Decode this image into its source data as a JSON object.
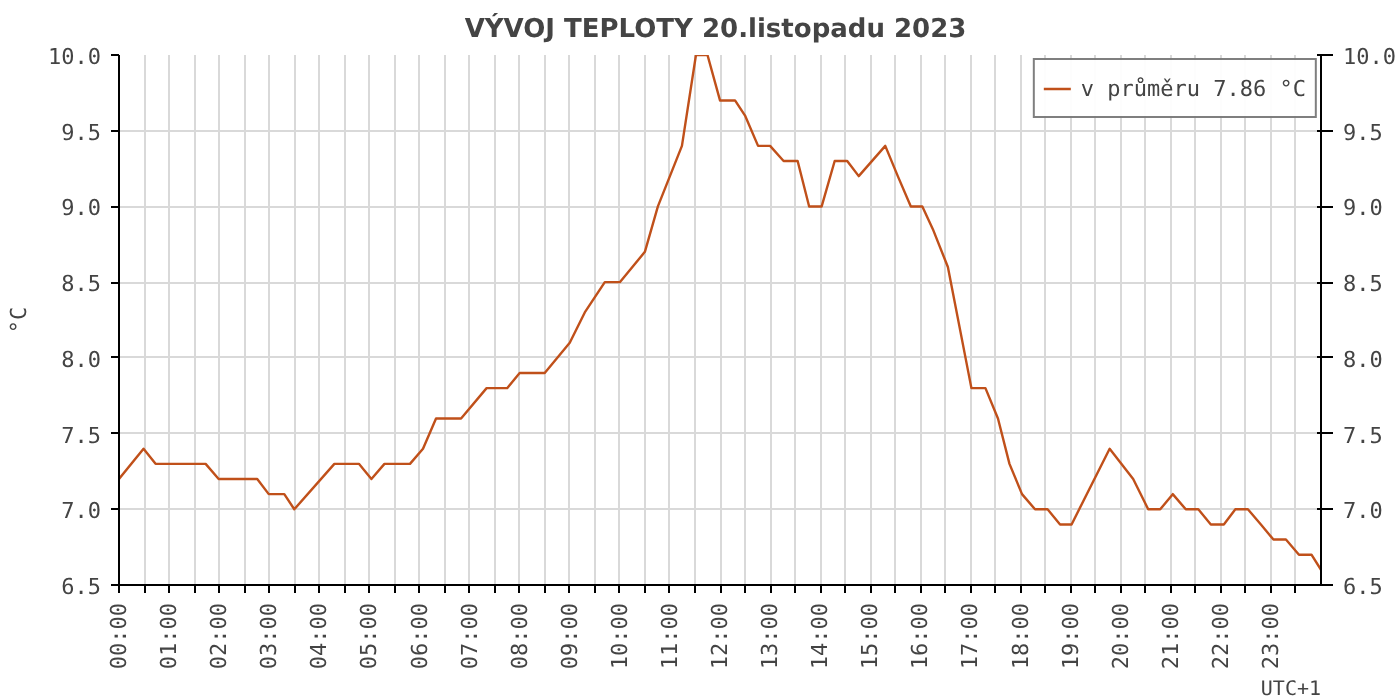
{
  "chart_data": {
    "type": "line",
    "title": "VÝVOJ TEPLOTY  20.listopadu 2023",
    "ylabel": "°C",
    "annotations": [
      "UTC+1"
    ],
    "x": [
      0,
      0.49,
      0.73,
      1.73,
      1.99,
      2.76,
      2.99,
      3.3,
      3.5,
      4.3,
      4.79,
      5.04,
      5.3,
      5.81,
      6.07,
      6.33,
      6.83,
      7.34,
      7.75,
      8.0,
      8.5,
      9.0,
      9.3,
      9.7,
      10.0,
      10.5,
      10.76,
      11.24,
      11.52,
      11.75,
      12.0,
      12.3,
      12.5,
      12.76,
      13.0,
      13.27,
      13.55,
      13.78,
      14.03,
      14.29,
      14.54,
      14.77,
      15.3,
      15.55,
      15.81,
      16.04,
      16.25,
      16.55,
      17.02,
      17.3,
      17.55,
      17.78,
      18.03,
      18.29,
      18.54,
      18.79,
      19.02,
      19.78,
      20.25,
      20.55,
      20.79,
      21.04,
      21.3,
      21.55,
      21.8,
      22.06,
      22.29,
      22.54,
      22.8,
      23.05,
      23.3,
      23.56,
      23.81,
      24.0
    ],
    "series": [
      {
        "name": "v průměru 7.86 °C",
        "color": "#c0501a",
        "values": [
          7.2,
          7.4,
          7.3,
          7.3,
          7.2,
          7.2,
          7.1,
          7.1,
          7.0,
          7.3,
          7.3,
          7.2,
          7.3,
          7.3,
          7.4,
          7.6,
          7.6,
          7.8,
          7.8,
          7.9,
          7.9,
          8.1,
          8.3,
          8.5,
          8.5,
          8.7,
          9.0,
          9.4,
          10.0,
          10.0,
          9.7,
          9.7,
          9.6,
          9.4,
          9.4,
          9.3,
          9.3,
          9.0,
          9.0,
          9.3,
          9.3,
          9.2,
          9.4,
          9.2,
          9.0,
          9.0,
          8.85,
          8.6,
          7.8,
          7.8,
          7.6,
          7.3,
          7.1,
          7.0,
          7.0,
          6.9,
          6.9,
          7.4,
          7.2,
          7.0,
          7.0,
          7.1,
          7.0,
          7.0,
          6.9,
          6.9,
          7.0,
          7.0,
          6.9,
          6.8,
          6.8,
          6.7,
          6.7,
          6.6
        ]
      }
    ],
    "xlim": [
      0,
      24
    ],
    "xticks": [
      {
        "value": 0,
        "label": "00:00"
      },
      {
        "value": 0.5,
        "label": null
      },
      {
        "value": 1,
        "label": "01:00"
      },
      {
        "value": 1.5,
        "label": null
      },
      {
        "value": 2,
        "label": "02:00"
      },
      {
        "value": 2.5,
        "label": null
      },
      {
        "value": 3,
        "label": "03:00"
      },
      {
        "value": 3.5,
        "label": null
      },
      {
        "value": 4,
        "label": "04:00"
      },
      {
        "value": 4.5,
        "label": null
      },
      {
        "value": 5,
        "label": "05:00"
      },
      {
        "value": 5.5,
        "label": null
      },
      {
        "value": 6,
        "label": "06:00"
      },
      {
        "value": 6.5,
        "label": null
      },
      {
        "value": 7,
        "label": "07:00"
      },
      {
        "value": 7.5,
        "label": null
      },
      {
        "value": 8,
        "label": "08:00"
      },
      {
        "value": 8.5,
        "label": null
      },
      {
        "value": 9,
        "label": "09:00"
      },
      {
        "value": 9.5,
        "label": null
      },
      {
        "value": 10,
        "label": "10:00"
      },
      {
        "value": 10.5,
        "label": null
      },
      {
        "value": 11,
        "label": "11:00"
      },
      {
        "value": 11.5,
        "label": null
      },
      {
        "value": 12,
        "label": "12:00"
      },
      {
        "value": 12.5,
        "label": null
      },
      {
        "value": 13,
        "label": "13:00"
      },
      {
        "value": 13.5,
        "label": null
      },
      {
        "value": 14,
        "label": "14:00"
      },
      {
        "value": 14.5,
        "label": null
      },
      {
        "value": 15,
        "label": "15:00"
      },
      {
        "value": 15.5,
        "label": null
      },
      {
        "value": 16,
        "label": "16:00"
      },
      {
        "value": 16.5,
        "label": null
      },
      {
        "value": 17,
        "label": "17:00"
      },
      {
        "value": 17.5,
        "label": null
      },
      {
        "value": 18,
        "label": "18:00"
      },
      {
        "value": 18.5,
        "label": null
      },
      {
        "value": 19,
        "label": "19:00"
      },
      {
        "value": 19.5,
        "label": null
      },
      {
        "value": 20,
        "label": "20:00"
      },
      {
        "value": 20.5,
        "label": null
      },
      {
        "value": 21,
        "label": "21:00"
      },
      {
        "value": 21.5,
        "label": null
      },
      {
        "value": 22,
        "label": "22:00"
      },
      {
        "value": 22.5,
        "label": null
      },
      {
        "value": 23,
        "label": "23:00"
      },
      {
        "value": 23.5,
        "label": null
      }
    ],
    "ylim": [
      6.5,
      10.0
    ],
    "yticks": [
      {
        "value": 6.5,
        "label": "6.5"
      },
      {
        "value": 7.0,
        "label": "7.0"
      },
      {
        "value": 7.5,
        "label": "7.5"
      },
      {
        "value": 8.0,
        "label": "8.0"
      },
      {
        "value": 8.5,
        "label": "8.5"
      },
      {
        "value": 9.0,
        "label": "9.0"
      },
      {
        "value": 9.5,
        "label": "9.5"
      },
      {
        "value": 10.0,
        "label": "10.0"
      }
    ],
    "y2lim": [
      6.5,
      10.0
    ],
    "y2ticks": [
      {
        "value": 6.5,
        "label": "6.5"
      },
      {
        "value": 7.0,
        "label": "7.0"
      },
      {
        "value": 7.5,
        "label": "7.5"
      },
      {
        "value": 8.0,
        "label": "8.0"
      },
      {
        "value": 8.5,
        "label": "8.5"
      },
      {
        "value": 9.0,
        "label": "9.0"
      },
      {
        "value": 9.5,
        "label": "9.5"
      },
      {
        "value": 10.0,
        "label": "10.0"
      }
    ],
    "grid": true,
    "legend": "top right",
    "line_style": "solid"
  }
}
